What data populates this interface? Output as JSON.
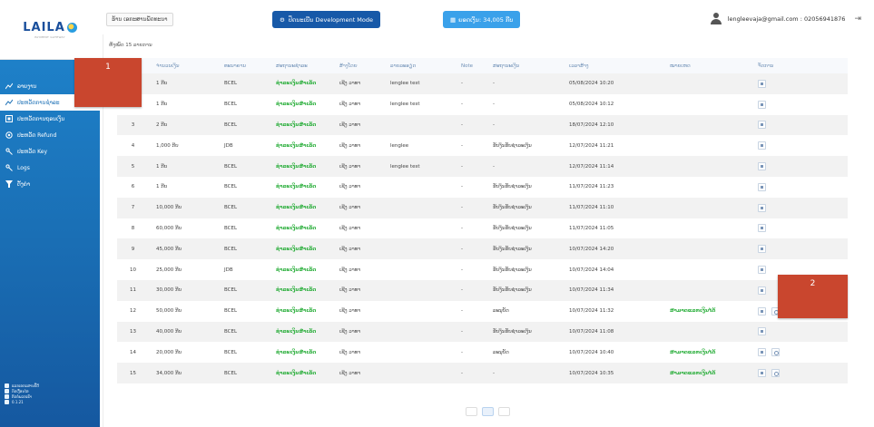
{
  "sidebar": {
    "logo": "LAILA",
    "logo_sub": "PAYMENT GATEWAY",
    "items": [
      {
        "label": "ລາຍງານ",
        "icon": "chart-icon"
      },
      {
        "label": "ປະຫວັດການຊຳລະ",
        "icon": "history-icon"
      },
      {
        "label": "ປະຫວັດການຖອນເງິນ",
        "icon": "withdraw-icon"
      },
      {
        "label": "ປະຫວັດ Refund",
        "icon": "refund-icon"
      },
      {
        "label": "ປະຫວັດ Key",
        "icon": "key-icon"
      },
      {
        "label": "Logs",
        "icon": "logs-icon"
      },
      {
        "label": "ຕັ້ງຄ່າ",
        "icon": "filter-icon"
      }
    ],
    "footer": [
      "ແລກເອກະສານປີ້ດີ",
      "ກົດເງື່ອນໄຂ",
      "ຕິດຕໍ່ພວກເຮົາ",
      "0.1.21"
    ]
  },
  "markers": [
    "1",
    "2"
  ],
  "header": {
    "store": "ຮ້ານ ເອກະສານພັດທະນາ",
    "mode": "ປິດນະເບີນ Development Mode",
    "balance": "ຍອດເງິນ: 34,005 ກີບ",
    "user": "lengleevaja@gmail.com : 02056941876"
  },
  "date_label": "ຫັງໝົດ 15 ລາຍການ",
  "table": {
    "headers": [
      "",
      "ຈຳນວນເງິນ",
      "ທະນາຄານ",
      "ສະຖານະຊຳລະ",
      "ສ້າງໂດຍ",
      "ລາຍລະອຽດ",
      "Note",
      "ສະຖານະເງິນ",
      "ເວລາສ້າງ",
      "ໝາຍເຫດ",
      "ຈັດການ"
    ],
    "rows": [
      {
        "no": "1",
        "amount": "1 ກີບ",
        "bank": "BCEL",
        "status": "ຊຳລະເງິນສຳເລັດ",
        "by": "ເຊີງ ວາທາ",
        "detail": "lenglee test",
        "note": "-",
        "money_status": "-",
        "time": "05/08/2024 10:20",
        "remark": "",
        "refund": false
      },
      {
        "no": "2",
        "amount": "1 ກີບ",
        "bank": "BCEL",
        "status": "ຊຳລະເງິນສຳເລັດ",
        "by": "ເຊີງ ວາທາ",
        "detail": "lenglee test",
        "note": "-",
        "money_status": "-",
        "time": "05/08/2024 10:12",
        "remark": "",
        "refund": false
      },
      {
        "no": "3",
        "amount": "2 ກີບ",
        "bank": "BCEL",
        "status": "ຊຳລະເງິນສຳເລັດ",
        "by": "ເຊີງ ວາທາ",
        "detail": "",
        "note": "-",
        "money_status": "-",
        "time": "18/07/2024 12:10",
        "remark": "",
        "refund": false
      },
      {
        "no": "4",
        "amount": "1,000 ກີບ",
        "bank": "JDB",
        "status": "ຊຳລະເງິນສຳເລັດ",
        "by": "ເຊີງ ວາທາ",
        "detail": "lenglee",
        "note": "-",
        "money_status": "ຮັບງິນຮັບຊຳລະເງິນ",
        "time": "12/07/2024 11:21",
        "remark": "",
        "refund": false
      },
      {
        "no": "5",
        "amount": "1 ກີບ",
        "bank": "BCEL",
        "status": "ຊຳລະເງິນສຳເລັດ",
        "by": "ເຊີງ ວາທາ",
        "detail": "lenglee test",
        "note": "-",
        "money_status": "-",
        "time": "12/07/2024 11:14",
        "remark": "",
        "refund": false
      },
      {
        "no": "6",
        "amount": "1 ກີບ",
        "bank": "BCEL",
        "status": "ຊຳລະເງິນສຳເລັດ",
        "by": "ເຊີງ ວາທາ",
        "detail": "",
        "note": "-",
        "money_status": "ຮັບງິນຮັບຊຳລະເງິນ",
        "time": "11/07/2024 11:23",
        "remark": "",
        "refund": false
      },
      {
        "no": "7",
        "amount": "10,000 ກີບ",
        "bank": "BCEL",
        "status": "ຊຳລະເງິນສຳເລັດ",
        "by": "ເຊີງ ວາທາ",
        "detail": "",
        "note": "-",
        "money_status": "ຮັບງິນຮັບຊຳລະເງິນ",
        "time": "11/07/2024 11:10",
        "remark": "",
        "refund": false
      },
      {
        "no": "8",
        "amount": "60,000 ກີບ",
        "bank": "BCEL",
        "status": "ຊຳລະເງິນສຳເລັດ",
        "by": "ເຊີງ ວາທາ",
        "detail": "",
        "note": "-",
        "money_status": "ຮັບງິນຮັບຊຳລະເງິນ",
        "time": "11/07/2024 11:05",
        "remark": "",
        "refund": false
      },
      {
        "no": "9",
        "amount": "45,000 ກີບ",
        "bank": "BCEL",
        "status": "ຊຳລະເງິນສຳເລັດ",
        "by": "ເຊີງ ວາທາ",
        "detail": "",
        "note": "-",
        "money_status": "ຮັບງິນຮັບຊຳລະເງິນ",
        "time": "10/07/2024 14:20",
        "remark": "",
        "refund": false
      },
      {
        "no": "10",
        "amount": "25,000 ກີບ",
        "bank": "JDB",
        "status": "ຊຳລະເງິນສຳເລັດ",
        "by": "ເຊີງ ວາທາ",
        "detail": "",
        "note": "-",
        "money_status": "ຮັບງິນຮັບຊຳລະເງິນ",
        "time": "10/07/2024 14:04",
        "remark": "",
        "refund": false
      },
      {
        "no": "11",
        "amount": "30,000 ກີບ",
        "bank": "BCEL",
        "status": "ຊຳລະເງິນສຳເລັດ",
        "by": "ເຊີງ ວາທາ",
        "detail": "",
        "note": "-",
        "money_status": "ຮັບງິນຮັບຊຳລະເງິນ",
        "time": "10/07/2024 11:34",
        "remark": "",
        "refund": false
      },
      {
        "no": "12",
        "amount": "50,000 ກີບ",
        "bank": "BCEL",
        "status": "ຊຳລະເງິນສຳເລັດ",
        "by": "ເຊີງ ວາທາ",
        "detail": "",
        "note": "-",
        "money_status": "ລະນຸບັດ",
        "time": "10/07/2024 11:32",
        "remark": "ສາມາດແລກເງິນໄດ້",
        "refund": true
      },
      {
        "no": "13",
        "amount": "40,000 ກີບ",
        "bank": "BCEL",
        "status": "ຊຳລະເງິນສຳເລັດ",
        "by": "ເຊີງ ວາທາ",
        "detail": "",
        "note": "-",
        "money_status": "ຮັບງິນຮັບຊຳລະເງິນ",
        "time": "10/07/2024 11:08",
        "remark": "",
        "refund": false
      },
      {
        "no": "14",
        "amount": "20,000 ກີບ",
        "bank": "BCEL",
        "status": "ຊຳລະເງິນສຳເລັດ",
        "by": "ເຊີງ ວາທາ",
        "detail": "",
        "note": "-",
        "money_status": "ລະນຸບັດ",
        "time": "10/07/2024 10:40",
        "remark": "ສາມາດແລກເງິນໄດ້",
        "refund": true
      },
      {
        "no": "15",
        "amount": "34,000 ກີບ",
        "bank": "BCEL",
        "status": "ຊຳລະເງິນສຳເລັດ",
        "by": "ເຊີງ ວາທາ",
        "detail": "",
        "note": "-",
        "money_status": "-",
        "time": "10/07/2024 10:35",
        "remark": "ສາມາດແລກເງິນໄດ້",
        "refund": true
      }
    ]
  },
  "colors": {
    "sidebar_top": "#1f86cf",
    "sidebar_bottom": "#1558a0",
    "accent_green": "#1faa31",
    "mode_button": "#1759a8",
    "balance_button": "#3aa1ea",
    "marker": "#c9462e"
  }
}
